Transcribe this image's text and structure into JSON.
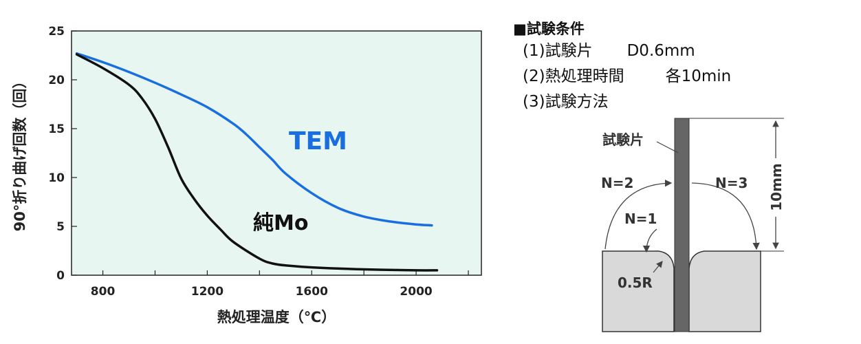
{
  "chart_data": {
    "type": "line",
    "xlabel": "熱処理温度（℃）",
    "ylabel": "90°折り曲げ回数（回）",
    "xlim": [
      680,
      2250
    ],
    "ylim": [
      0,
      25
    ],
    "x_ticks": [
      800,
      1200,
      1600,
      2000
    ],
    "y_ticks": [
      0,
      5,
      10,
      15,
      20,
      25
    ],
    "grid": false,
    "background": "#e8f6f1",
    "series": [
      {
        "name": "TEM",
        "color": "#1a6fe0",
        "x": [
          700,
          800,
          900,
          1000,
          1100,
          1200,
          1300,
          1350,
          1400,
          1450,
          1500,
          1600,
          1700,
          1800,
          1900,
          2000,
          2060
        ],
        "y": [
          22.7,
          21.8,
          20.8,
          19.7,
          18.5,
          17.2,
          15.5,
          14.4,
          13.1,
          11.8,
          10.4,
          8.4,
          6.9,
          6.0,
          5.5,
          5.2,
          5.1
        ]
      },
      {
        "name": "純Mo",
        "color": "#111111",
        "x": [
          700,
          800,
          900,
          950,
          1000,
          1050,
          1100,
          1150,
          1200,
          1250,
          1300,
          1400,
          1450,
          1500,
          1600,
          1800,
          2000,
          2080
        ],
        "y": [
          22.6,
          21.2,
          19.5,
          18.1,
          16.0,
          13.1,
          9.9,
          7.8,
          6.1,
          4.7,
          3.4,
          1.7,
          1.2,
          1.0,
          0.8,
          0.6,
          0.5,
          0.5
        ]
      }
    ]
  },
  "conditions": {
    "heading": "■試験条件",
    "items": [
      {
        "label": "(1)試験片",
        "value": "D0.6mm"
      },
      {
        "label": "(2)熱処理時間",
        "value": "各10min"
      },
      {
        "label": "(3)試験方法",
        "value": ""
      }
    ]
  },
  "diagram": {
    "specimen_label": "試験片",
    "length_label": "10mm",
    "n1": "N=1",
    "n2": "N=2",
    "n3": "N=3",
    "radius_label": "0.5R"
  }
}
